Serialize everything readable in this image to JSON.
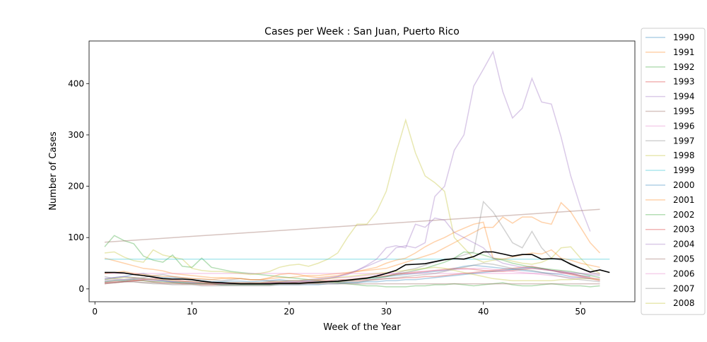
{
  "chart_data": {
    "type": "line",
    "title": "Cases per Week : San Juan, Puerto Rico",
    "xlabel": "Week of the Year",
    "ylabel": "Number of Cases",
    "xlim": [
      -0.6,
      55.6
    ],
    "ylim": [
      -25,
      483
    ],
    "xticks": [
      0,
      10,
      20,
      30,
      40,
      50
    ],
    "yticks": [
      0,
      100,
      200,
      300,
      400
    ],
    "grid": false,
    "legend_placement": "right, outside plot",
    "series": [
      {
        "name": "1990",
        "color": "#1f77b4",
        "values": [
          18,
          22,
          24,
          28,
          30,
          24,
          22,
          22,
          20,
          18,
          16,
          14,
          14,
          15,
          15,
          14,
          15,
          16,
          18,
          16,
          16,
          15,
          14,
          14,
          15,
          16,
          18,
          20,
          22,
          24,
          26,
          28,
          30,
          32,
          34,
          36,
          40,
          44,
          46,
          44,
          42,
          40,
          38,
          40,
          42,
          40,
          36,
          32,
          30,
          26,
          24
        ]
      },
      {
        "name": "1991",
        "color": "#ff7f0e",
        "values": [
          60,
          55,
          50,
          45,
          40,
          38,
          35,
          30,
          28,
          26,
          24,
          22,
          22,
          20,
          20,
          18,
          18,
          20,
          22,
          22,
          24,
          26,
          26,
          28,
          30,
          32,
          34,
          36,
          38,
          40,
          46,
          52,
          58,
          64,
          70,
          80,
          90,
          100,
          110,
          120,
          120,
          140,
          128,
          140,
          140,
          130,
          126,
          168,
          150,
          120,
          90,
          70
        ]
      },
      {
        "name": "1992",
        "color": "#2ca02c",
        "values": [
          82,
          104,
          94,
          88,
          64,
          56,
          52,
          66,
          44,
          42,
          60,
          42,
          38,
          34,
          32,
          30,
          28,
          26,
          24,
          22,
          20,
          18,
          16,
          14,
          12,
          10,
          8,
          6,
          6,
          4,
          4,
          4,
          6,
          6,
          8,
          8,
          10,
          8,
          6,
          8,
          10,
          12,
          8,
          6,
          6,
          8,
          10,
          8,
          6,
          6,
          4,
          6
        ]
      },
      {
        "name": "1993",
        "color": "#d62728",
        "values": [
          10,
          12,
          14,
          16,
          16,
          14,
          12,
          12,
          10,
          10,
          8,
          8,
          8,
          8,
          8,
          8,
          8,
          8,
          10,
          10,
          10,
          12,
          12,
          14,
          14,
          16,
          16,
          18,
          18,
          20,
          20,
          22,
          22,
          24,
          24,
          26,
          28,
          30,
          32,
          34,
          36,
          38,
          40,
          42,
          44,
          40,
          36,
          32,
          28,
          24,
          20,
          16
        ]
      },
      {
        "name": "1994",
        "color": "#9467bd",
        "values": [
          14,
          16,
          16,
          18,
          18,
          16,
          16,
          14,
          14,
          14,
          12,
          12,
          12,
          12,
          12,
          12,
          12,
          14,
          14,
          16,
          16,
          18,
          20,
          22,
          24,
          30,
          36,
          44,
          52,
          60,
          80,
          84,
          80,
          90,
          180,
          200,
          270,
          300,
          395,
          428,
          462,
          384,
          333,
          352,
          410,
          364,
          360,
          296,
          220,
          160,
          112
        ]
      },
      {
        "name": "1995",
        "color": "#8c564b",
        "values": [
          91,
          155
        ]
      },
      {
        "name": "1996",
        "color": "#e377c2",
        "values": [
          30,
          30,
          30,
          30,
          30,
          30,
          30,
          30,
          30,
          30,
          30,
          30,
          30,
          30,
          30,
          30,
          30,
          30,
          30,
          30,
          30,
          30,
          30,
          30,
          30,
          30,
          30,
          30,
          30,
          30,
          30,
          30,
          30,
          30,
          30,
          30,
          30,
          30,
          30,
          30,
          30,
          30,
          30,
          30,
          30,
          30,
          30,
          30,
          30,
          30,
          30,
          30
        ]
      },
      {
        "name": "1997",
        "color": "#7f7f7f",
        "values": [
          24,
          20,
          18,
          20,
          22,
          26,
          28,
          24,
          22,
          20,
          18,
          18,
          16,
          18,
          20,
          18,
          18,
          16,
          16,
          14,
          12,
          12,
          14,
          16,
          14,
          12,
          12,
          16,
          20,
          24,
          30,
          36,
          40,
          46,
          52,
          56,
          60,
          66,
          72,
          170,
          150,
          120,
          90,
          80,
          112,
          80,
          60,
          56,
          50,
          40,
          32,
          28
        ]
      },
      {
        "name": "1998",
        "color": "#bcbd22",
        "values": [
          70,
          72,
          62,
          55,
          52,
          76,
          66,
          62,
          58,
          40,
          36,
          34,
          34,
          32,
          30,
          28,
          30,
          34,
          42,
          46,
          48,
          44,
          50,
          58,
          70,
          100,
          126,
          126,
          150,
          190,
          264,
          329,
          265,
          220,
          207,
          190,
          100,
          80,
          60,
          52,
          56,
          58,
          54,
          50,
          48,
          52,
          60,
          80,
          82,
          60,
          40,
          30
        ]
      },
      {
        "name": "1999",
        "color": "#17becf",
        "values": [
          58,
          58,
          58,
          58,
          58,
          58,
          58,
          58,
          58,
          58,
          58,
          58,
          58,
          58,
          58,
          58,
          58,
          58,
          58,
          58,
          58,
          58,
          58,
          58,
          58,
          58,
          58,
          58,
          58,
          58,
          58,
          58,
          58,
          58,
          58,
          58,
          58,
          58,
          58,
          58,
          58,
          58,
          58,
          58,
          58,
          58,
          58,
          58,
          58,
          58,
          58,
          58,
          58
        ]
      },
      {
        "name": "2000",
        "color": "#1f77b4",
        "values": [
          20,
          22,
          24,
          22,
          20,
          18,
          16,
          14,
          12,
          12,
          10,
          10,
          8,
          8,
          8,
          8,
          8,
          8,
          8,
          8,
          8,
          8,
          8,
          10,
          10,
          12,
          12,
          14,
          14,
          16,
          16,
          18,
          18,
          20,
          22,
          24,
          26,
          28,
          30,
          32,
          34,
          36,
          38,
          36,
          34,
          32,
          30,
          28,
          24,
          22,
          20
        ]
      },
      {
        "name": "2001",
        "color": "#ff7f0e",
        "values": [
          30,
          32,
          34,
          30,
          28,
          26,
          24,
          24,
          22,
          20,
          20,
          18,
          20,
          22,
          20,
          18,
          18,
          22,
          28,
          30,
          28,
          24,
          22,
          24,
          26,
          30,
          34,
          38,
          42,
          50,
          56,
          60,
          70,
          82,
          92,
          100,
          110,
          118,
          126,
          130,
          60,
          58,
          62,
          66,
          70,
          68,
          76,
          60,
          56,
          50,
          46,
          42
        ]
      },
      {
        "name": "2002",
        "color": "#2ca02c",
        "values": [
          14,
          16,
          16,
          18,
          16,
          14,
          14,
          12,
          12,
          10,
          10,
          10,
          8,
          8,
          8,
          8,
          8,
          8,
          10,
          10,
          10,
          12,
          12,
          14,
          14,
          16,
          18,
          20,
          22,
          24,
          28,
          32,
          36,
          40,
          46,
          52,
          60,
          72,
          70,
          66,
          60,
          56,
          50,
          46,
          42,
          40,
          38,
          36,
          34,
          30,
          26,
          22
        ]
      },
      {
        "name": "2003",
        "color": "#d62728",
        "values": [
          12,
          14,
          14,
          16,
          18,
          20,
          20,
          18,
          16,
          14,
          12,
          10,
          10,
          10,
          10,
          10,
          10,
          12,
          12,
          12,
          14,
          14,
          16,
          16,
          18,
          18,
          20,
          22,
          24,
          26,
          28,
          30,
          32,
          34,
          36,
          38,
          40,
          40,
          38,
          36,
          34,
          34,
          36,
          38,
          40,
          38,
          36,
          34,
          30,
          26,
          22,
          18
        ]
      },
      {
        "name": "2004",
        "color": "#9467bd",
        "values": [
          16,
          18,
          18,
          20,
          20,
          18,
          16,
          14,
          14,
          12,
          12,
          12,
          10,
          10,
          10,
          10,
          10,
          12,
          12,
          14,
          14,
          16,
          18,
          20,
          24,
          28,
          36,
          46,
          58,
          80,
          84,
          80,
          126,
          120,
          138,
          134,
          110,
          100,
          90,
          80,
          60,
          50,
          46,
          42,
          40,
          38,
          36,
          34,
          32,
          30,
          28,
          26
        ]
      },
      {
        "name": "2005",
        "color": "#8c564b",
        "values": [
          12,
          12,
          14,
          14,
          12,
          12,
          10,
          10,
          10,
          10,
          10,
          10,
          10,
          10,
          10,
          10,
          10,
          10,
          10,
          10,
          10,
          10,
          10,
          10,
          10,
          10,
          10,
          10,
          10,
          10,
          10,
          10,
          10,
          10,
          10,
          10,
          10,
          10,
          10,
          10,
          10,
          10,
          10,
          10,
          10,
          10,
          10,
          10,
          10,
          10,
          10,
          10
        ]
      },
      {
        "name": "2006",
        "color": "#e377c2",
        "values": [
          20,
          22,
          24,
          22,
          20,
          18,
          18,
          16,
          14,
          14,
          12,
          12,
          12,
          12,
          12,
          12,
          12,
          14,
          14,
          16,
          16,
          18,
          18,
          20,
          22,
          22,
          24,
          26,
          28,
          30,
          30,
          32,
          34,
          34,
          36,
          36,
          38,
          38,
          40,
          40,
          38,
          36,
          34,
          32,
          30,
          28,
          26,
          24,
          22,
          22,
          20,
          20
        ]
      },
      {
        "name": "2007",
        "color": "#7f7f7f",
        "values": [
          10,
          12,
          14,
          14,
          12,
          10,
          10,
          8,
          8,
          8,
          6,
          6,
          6,
          6,
          6,
          6,
          6,
          6,
          8,
          8,
          8,
          10,
          10,
          12,
          12,
          14,
          14,
          16,
          18,
          20,
          22,
          24,
          26,
          28,
          30,
          34,
          38,
          42,
          46,
          50,
          48,
          44,
          40,
          38,
          36,
          32,
          28,
          24,
          20,
          18,
          16,
          14
        ]
      },
      {
        "name": "2008",
        "color": "#bcbd22",
        "values": [
          18,
          20,
          22,
          22,
          20,
          18,
          18,
          16,
          14,
          14,
          12,
          12,
          12,
          12,
          12,
          12,
          12,
          14,
          14,
          16,
          16,
          18,
          18,
          20,
          22,
          24,
          26,
          28,
          30,
          32,
          34,
          36,
          38,
          40,
          42,
          40,
          36,
          32,
          28,
          24,
          20,
          18,
          16,
          16,
          16,
          16,
          16,
          18,
          18,
          20,
          20,
          18
        ]
      },
      {
        "name": "",
        "color": "#000000",
        "values": [
          32,
          32,
          31,
          28,
          26,
          23,
          20,
          19,
          19,
          18,
          15,
          13,
          12,
          11,
          10,
          10,
          10,
          10,
          11,
          11,
          11,
          12,
          13,
          14,
          15,
          17,
          19,
          21,
          25,
          30,
          36,
          47,
          48,
          49,
          53,
          57,
          59,
          58,
          63,
          72,
          72,
          68,
          64,
          67,
          67,
          58,
          59,
          58,
          48,
          40,
          33,
          37,
          32
        ]
      }
    ]
  }
}
